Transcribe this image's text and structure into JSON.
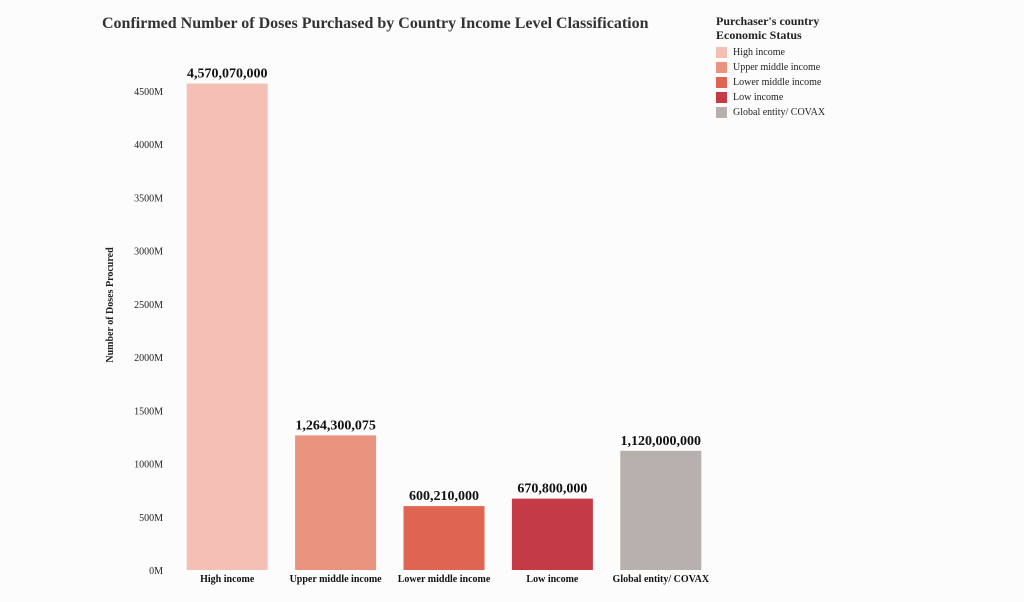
{
  "chart_data": {
    "type": "bar",
    "title": "Confirmed Number of Doses Purchased by Country Income Level Classification",
    "xlabel": "",
    "ylabel": "Number of Doses Procured",
    "ylim": [
      0,
      4600000000
    ],
    "yticks": [
      0,
      500000000,
      1000000000,
      1500000000,
      2000000000,
      2500000000,
      3000000000,
      3500000000,
      4000000000,
      4500000000
    ],
    "ytick_labels": [
      "0M",
      "500M",
      "1000M",
      "1500M",
      "2000M",
      "2500M",
      "3000M",
      "3500M",
      "4000M",
      "4500M"
    ],
    "categories": [
      "High income",
      "Upper middle income",
      "Lower middle income",
      "Low income",
      "Global entity/ COVAX"
    ],
    "values": [
      4570070000,
      1264300075,
      600210000,
      670800000,
      1120000000
    ],
    "data_labels": [
      "4,570,070,000",
      "1,264,300,075",
      "600,210,000",
      "670,800,000",
      "1,120,000,000"
    ],
    "colors": [
      "#f4c0b5",
      "#ea9480",
      "#e06452",
      "#c53b45",
      "#b7b0ad"
    ],
    "legend": {
      "title_line1": "Purchaser's country",
      "title_line2": "Economic  Status",
      "placement": "top-right",
      "items": [
        "High income",
        "Upper middle income",
        "Lower middle income",
        "Low income",
        "Global entity/ COVAX"
      ]
    }
  }
}
